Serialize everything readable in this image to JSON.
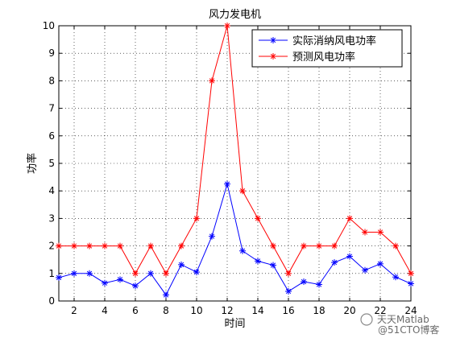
{
  "chart_data": {
    "type": "line",
    "title": "风力发电机",
    "xlabel": "时间",
    "ylabel": "功率",
    "xlim": [
      1,
      24
    ],
    "ylim": [
      0,
      10
    ],
    "xticks": [
      2,
      4,
      6,
      8,
      10,
      12,
      14,
      16,
      18,
      20,
      22,
      24
    ],
    "yticks": [
      0,
      1,
      2,
      3,
      4,
      5,
      6,
      7,
      8,
      9,
      10
    ],
    "grid": true,
    "legend_position": "top-right",
    "x": [
      1,
      2,
      3,
      4,
      5,
      6,
      7,
      8,
      9,
      10,
      11,
      12,
      13,
      14,
      15,
      16,
      17,
      18,
      19,
      20,
      21,
      22,
      23,
      24
    ],
    "series": [
      {
        "name": "实际消纳风电功率",
        "color": "#0000ff",
        "marker": "asterisk",
        "values": [
          0.85,
          1.0,
          1.0,
          0.65,
          0.78,
          0.55,
          1.0,
          0.22,
          1.32,
          1.05,
          2.35,
          4.25,
          1.82,
          1.45,
          1.3,
          0.35,
          0.7,
          0.6,
          1.4,
          1.62,
          1.12,
          1.35,
          0.87,
          0.63
        ]
      },
      {
        "name": "预测风电功率",
        "color": "#ff0000",
        "marker": "asterisk",
        "values": [
          2,
          2,
          2,
          2,
          2,
          1,
          2,
          1,
          2,
          3,
          8,
          10,
          4,
          3,
          2,
          1,
          2,
          2,
          2,
          3,
          2.5,
          2.5,
          2,
          1
        ]
      }
    ]
  },
  "watermark": {
    "line1": "天天Matlab",
    "line2": "@51CTO博客"
  }
}
